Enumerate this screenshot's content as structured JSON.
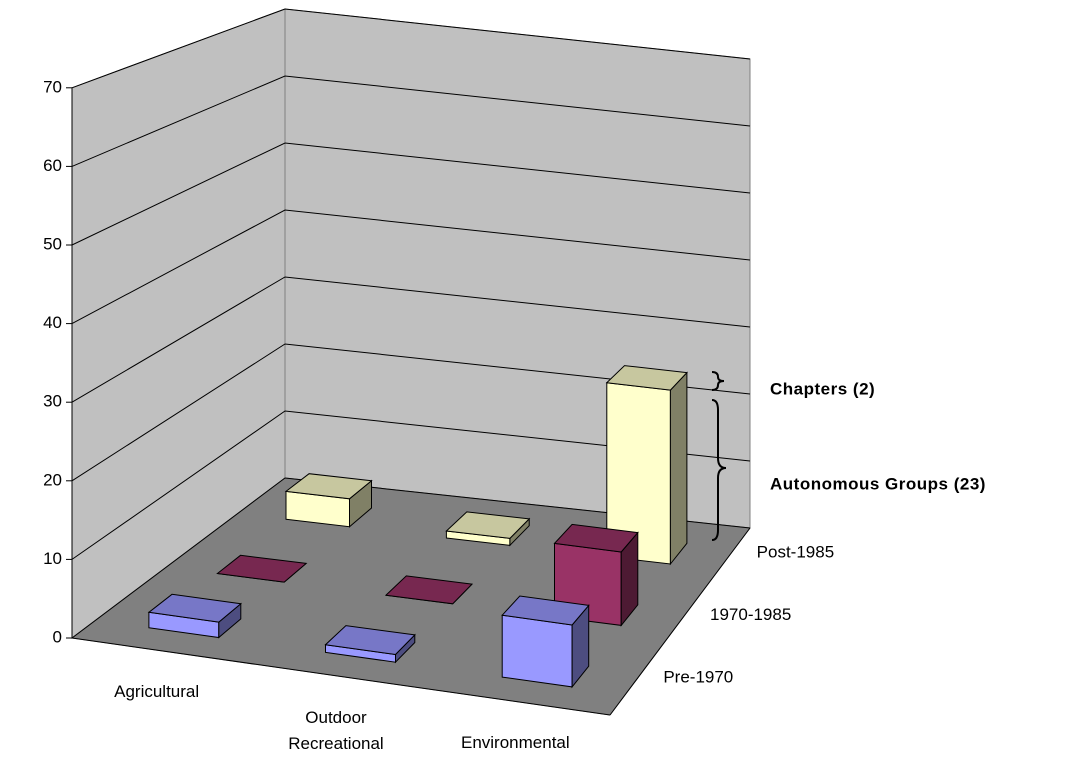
{
  "chart_data": {
    "type": "bar3d",
    "categories": [
      "Agricultural",
      "Outdoor Recreational",
      "Environmental"
    ],
    "series": [
      {
        "name": "Pre-1970",
        "color": "#9999ff",
        "values": [
          2,
          1,
          8
        ]
      },
      {
        "name": "1970-1985",
        "color": "#993366",
        "values": [
          0,
          0,
          10
        ]
      },
      {
        "name": "Post-1985",
        "color": "#ffffcc",
        "values": [
          4,
          1,
          25
        ]
      }
    ],
    "ylim": [
      0,
      70
    ],
    "yticks": [
      0,
      10,
      20,
      30,
      40,
      50,
      60,
      70
    ],
    "grid": true,
    "annotations": [
      "Chapters (2)",
      "Autonomous Groups (23)"
    ]
  }
}
